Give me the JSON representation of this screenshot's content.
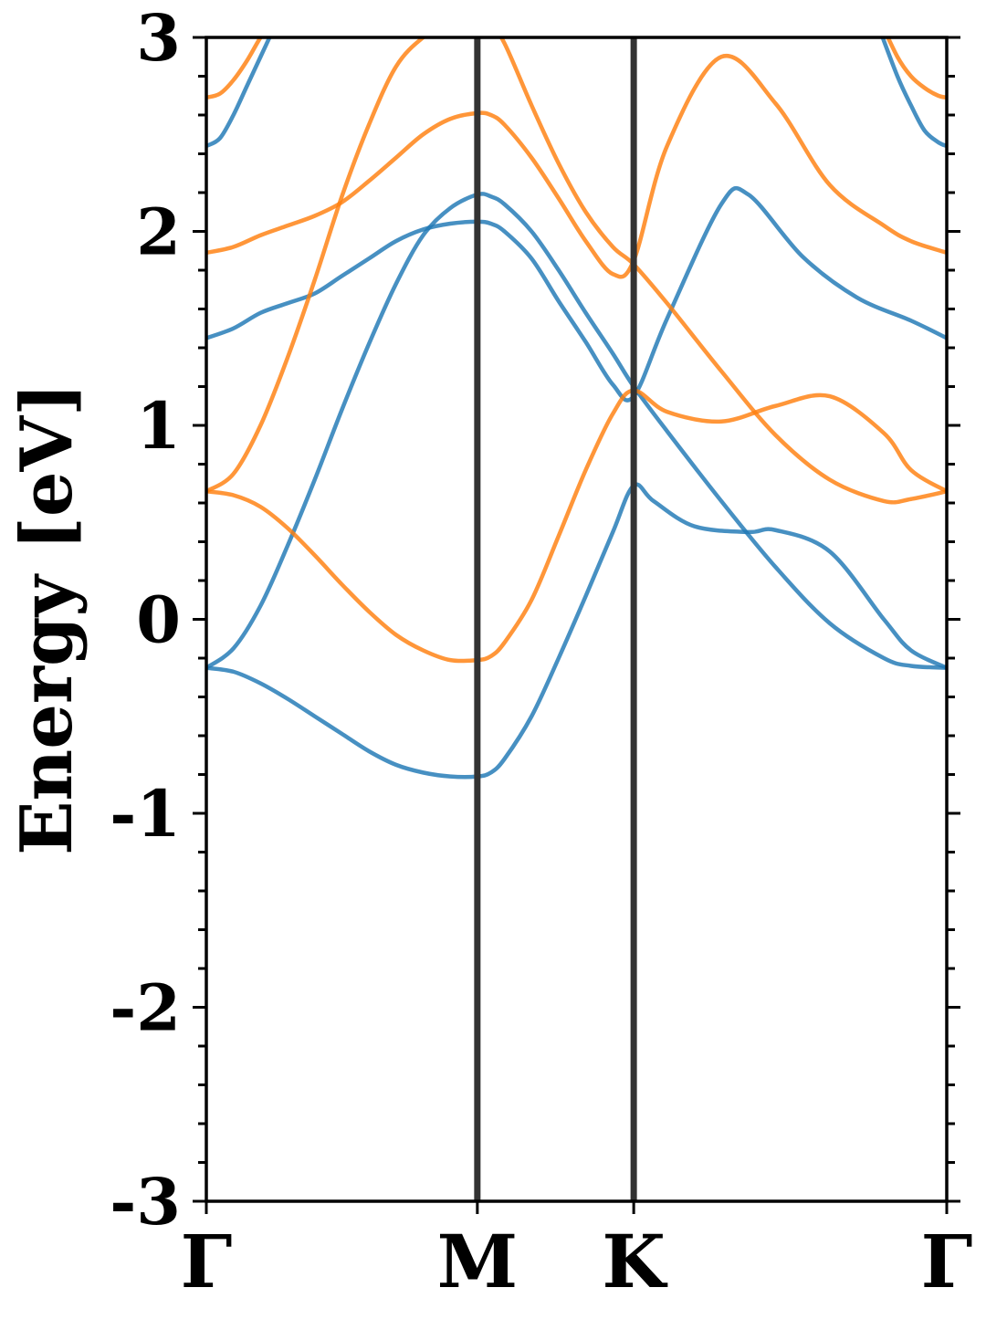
{
  "chart_data": {
    "type": "line",
    "title": "",
    "xlabel": "",
    "ylabel": "Energy [eV]",
    "ylim": [
      -3,
      3
    ],
    "yticks": [
      3,
      2,
      1,
      0,
      -1,
      -2,
      -3
    ],
    "ytick_labels": [
      "3",
      "2",
      "1",
      "0",
      "-1",
      "-2",
      "-3"
    ],
    "y_minor_step": 0.2,
    "grid": false,
    "legend": "none",
    "k_path": {
      "labels": [
        "Γ",
        "M",
        "K",
        "Γ"
      ],
      "positions": [
        0,
        1,
        1.577,
        2.732
      ]
    },
    "xlim": [
      0,
      2.732
    ],
    "colors": {
      "spin_up": "#1f77b4",
      "spin_down": "#ff7f0e",
      "kpoint_line": "#333333"
    },
    "series": [
      {
        "color": "spin_up",
        "x": [
          0,
          0.1,
          0.2,
          0.3,
          0.4,
          0.5,
          0.6,
          0.7,
          0.8,
          0.9,
          1.0,
          1.05,
          1.1,
          1.2,
          1.3,
          1.4,
          1.5,
          1.577,
          1.65,
          1.8,
          2.0,
          2.1,
          2.3,
          2.5,
          2.6,
          2.732
        ],
        "y": [
          -0.25,
          -0.27,
          -0.33,
          -0.41,
          -0.5,
          -0.59,
          -0.68,
          -0.75,
          -0.79,
          -0.81,
          -0.81,
          -0.79,
          -0.72,
          -0.5,
          -0.2,
          0.12,
          0.45,
          0.69,
          0.61,
          0.48,
          0.45,
          0.46,
          0.35,
          0.0,
          -0.16,
          -0.25
        ]
      },
      {
        "color": "spin_up",
        "x": [
          0,
          0.1,
          0.2,
          0.3,
          0.4,
          0.5,
          0.6,
          0.7,
          0.8,
          0.9,
          1.0,
          1.05,
          1.1,
          1.2,
          1.3,
          1.4,
          1.5,
          1.577,
          1.7,
          1.9,
          2.1,
          2.3,
          2.5,
          2.6,
          2.732
        ],
        "y": [
          -0.25,
          -0.15,
          0.07,
          0.38,
          0.72,
          1.08,
          1.42,
          1.73,
          1.98,
          2.12,
          2.19,
          2.18,
          2.14,
          2.0,
          1.8,
          1.58,
          1.37,
          1.2,
          0.97,
          0.61,
          0.27,
          -0.02,
          -0.2,
          -0.24,
          -0.25
        ]
      },
      {
        "color": "spin_up",
        "x": [
          0,
          0.1,
          0.2,
          0.3,
          0.4,
          0.5,
          0.6,
          0.7,
          0.8,
          0.9,
          1.0,
          1.05,
          1.1,
          1.2,
          1.3,
          1.4,
          1.5,
          1.577,
          1.7,
          1.9,
          2.0,
          2.2,
          2.4,
          2.6,
          2.732
        ],
        "y": [
          1.45,
          1.5,
          1.58,
          1.63,
          1.68,
          1.77,
          1.86,
          1.95,
          2.01,
          2.04,
          2.05,
          2.04,
          2.0,
          1.86,
          1.64,
          1.43,
          1.21,
          1.15,
          1.55,
          2.14,
          2.19,
          1.87,
          1.66,
          1.54,
          1.45
        ]
      },
      {
        "color": "spin_up",
        "x": [
          0,
          0.05,
          0.1,
          0.15,
          0.2,
          0.25
        ],
        "y": [
          2.44,
          2.48,
          2.6,
          2.75,
          2.9,
          3.05
        ]
      },
      {
        "color": "spin_up",
        "x": [
          2.482,
          2.55,
          2.6,
          2.65,
          2.7,
          2.732
        ],
        "y": [
          3.05,
          2.8,
          2.65,
          2.52,
          2.46,
          2.44
        ]
      },
      {
        "color": "spin_down",
        "x": [
          0,
          0.1,
          0.2,
          0.3,
          0.4,
          0.5,
          0.6,
          0.7,
          0.8,
          0.9,
          1.0,
          1.05,
          1.1,
          1.2,
          1.3,
          1.4,
          1.5,
          1.577,
          1.7,
          1.9,
          2.1,
          2.3,
          2.5,
          2.6,
          2.732
        ],
        "y": [
          0.66,
          0.64,
          0.58,
          0.47,
          0.33,
          0.18,
          0.04,
          -0.08,
          -0.16,
          -0.21,
          -0.21,
          -0.19,
          -0.12,
          0.1,
          0.43,
          0.77,
          1.06,
          1.18,
          1.07,
          1.02,
          1.1,
          1.15,
          0.96,
          0.77,
          0.66
        ]
      },
      {
        "color": "spin_down",
        "x": [
          0,
          0.1,
          0.2,
          0.3,
          0.4,
          0.5,
          0.6,
          0.7,
          0.8,
          0.9,
          1.0,
          1.05,
          1.1,
          1.2,
          1.3,
          1.4,
          1.5,
          1.577,
          1.7,
          1.9,
          2.1,
          2.3,
          2.5,
          2.6,
          2.732
        ],
        "y": [
          0.66,
          0.75,
          1.0,
          1.35,
          1.75,
          2.18,
          2.55,
          2.85,
          3.0,
          3.08,
          3.08,
          3.06,
          2.97,
          2.65,
          2.35,
          2.1,
          1.92,
          1.83,
          1.63,
          1.28,
          0.95,
          0.72,
          0.61,
          0.62,
          0.66
        ]
      },
      {
        "color": "spin_down",
        "x": [
          0,
          0.1,
          0.2,
          0.3,
          0.4,
          0.5,
          0.6,
          0.7,
          0.8,
          0.9,
          1.0,
          1.05,
          1.1,
          1.2,
          1.3,
          1.4,
          1.5,
          1.577,
          1.7,
          1.9,
          2.1,
          2.3,
          2.5,
          2.6,
          2.732
        ],
        "y": [
          1.89,
          1.92,
          1.98,
          2.03,
          2.08,
          2.15,
          2.26,
          2.38,
          2.5,
          2.58,
          2.61,
          2.6,
          2.55,
          2.38,
          2.17,
          1.95,
          1.78,
          1.85,
          2.44,
          2.9,
          2.66,
          2.24,
          2.03,
          1.95,
          1.89
        ]
      },
      {
        "color": "spin_down",
        "x": [
          0,
          0.05,
          0.1,
          0.15,
          0.2,
          0.25
        ],
        "y": [
          2.69,
          2.71,
          2.78,
          2.88,
          3.0,
          3.1
        ]
      },
      {
        "color": "spin_down",
        "x": [
          2.482,
          2.55,
          2.6,
          2.65,
          2.7,
          2.732
        ],
        "y": [
          3.1,
          2.9,
          2.8,
          2.74,
          2.7,
          2.69
        ]
      }
    ]
  }
}
